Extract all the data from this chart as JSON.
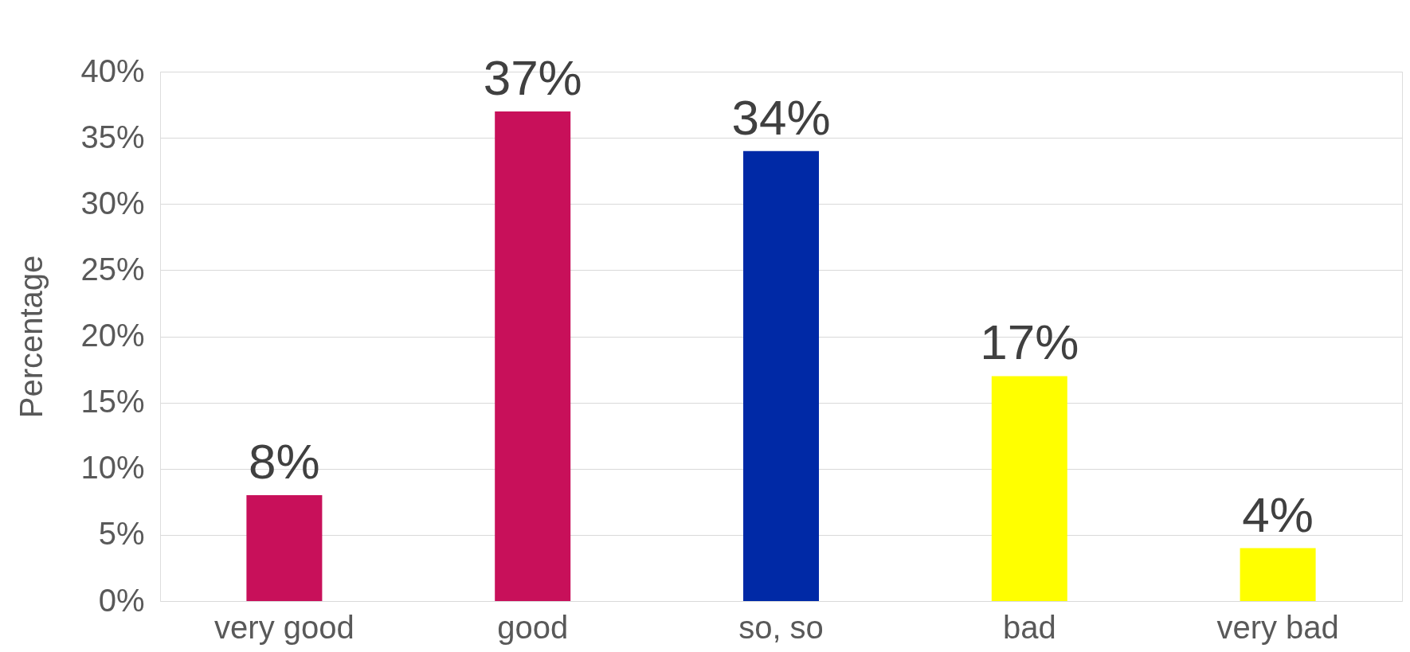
{
  "chart_data": {
    "type": "bar",
    "ylabel": "Percentage",
    "categories": [
      "very good",
      "good",
      "so, so",
      "bad",
      "very bad"
    ],
    "values": [
      8,
      37,
      34,
      17,
      4
    ],
    "colors": [
      "#c8105a",
      "#c8105a",
      "#0029a6",
      "#ffff00",
      "#ffff00"
    ],
    "value_labels": [
      "8%",
      "37%",
      "34%",
      "17%",
      "4%"
    ],
    "ylim": [
      0,
      40
    ],
    "yticks": [
      {
        "value": 0,
        "label": "0%"
      },
      {
        "value": 5,
        "label": "5%"
      },
      {
        "value": 10,
        "label": "10%"
      },
      {
        "value": 15,
        "label": "15%"
      },
      {
        "value": 20,
        "label": "20%"
      },
      {
        "value": 25,
        "label": "25%"
      },
      {
        "value": 30,
        "label": "30%"
      },
      {
        "value": 35,
        "label": "35%"
      },
      {
        "value": 40,
        "label": "40%"
      }
    ],
    "grid": "y"
  }
}
